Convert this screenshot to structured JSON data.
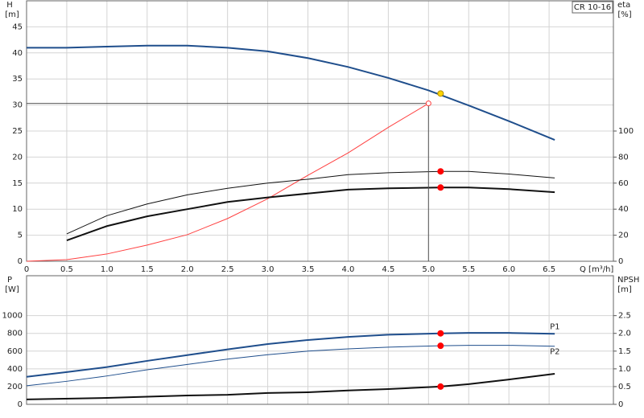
{
  "chart_data": [
    {
      "type": "line",
      "model": "CR 10-16",
      "y_label": "H",
      "y_unit": "[m]",
      "y2_label": "eta",
      "y2_unit": "[%]",
      "x_label": "Q [m³/h]",
      "xlim": [
        0,
        7.3
      ],
      "xticks": [
        0,
        0.5,
        {
          "value": 1,
          "label": "1.0"
        },
        1.5,
        {
          "value": 2,
          "label": "2.0"
        },
        2.5,
        {
          "value": 3,
          "label": "3.0"
        },
        3.5,
        {
          "value": 4,
          "label": "4.0"
        },
        4.5,
        {
          "value": 5,
          "label": "5.0"
        },
        5.5,
        {
          "value": 6,
          "label": "6.0"
        },
        6.5
      ],
      "ylim": [
        0,
        50
      ],
      "yticks": [
        0,
        5,
        10,
        15,
        20,
        25,
        30,
        35,
        40,
        45
      ],
      "y2lim": [
        0,
        200
      ],
      "y2ticks": [
        0,
        20,
        40,
        60,
        80,
        100
      ],
      "grid": true,
      "series": [
        {
          "color": "#1f4e8c",
          "width": 2,
          "x": [
            0,
            0.5,
            1,
            1.5,
            2,
            2.5,
            3,
            3.5,
            4,
            4.5,
            5,
            5.5,
            6,
            6.57
          ],
          "values": [
            41,
            41,
            41.2,
            41.4,
            41.4,
            41,
            40.3,
            39,
            37.3,
            35.2,
            32.8,
            29.9,
            26.9,
            23.3
          ]
        },
        {
          "color": "#ff4040",
          "width": 1,
          "x": [
            0,
            0.5,
            1,
            1.5,
            2,
            2.5,
            3,
            3.5,
            4,
            4.5,
            5
          ],
          "values": [
            0,
            0.3,
            1.4,
            3.1,
            5.1,
            8.2,
            12,
            16.5,
            20.8,
            25.7,
            30.3
          ]
        },
        {
          "color": "#111111",
          "width": 1,
          "axis": "y2",
          "x": [
            0.5,
            1,
            1.5,
            2,
            2.5,
            3,
            3.5,
            4,
            4.5,
            5.15,
            5.5,
            6,
            6.57
          ],
          "values": [
            21,
            35,
            44,
            51,
            56,
            60,
            63,
            66.5,
            68,
            69,
            69,
            67,
            64
          ]
        },
        {
          "color": "#111111",
          "width": 2,
          "axis": "y2",
          "x": [
            0.5,
            1,
            1.5,
            2,
            2.5,
            3,
            3.5,
            4,
            4.5,
            5.15,
            5.5,
            6,
            6.57
          ],
          "values": [
            16,
            27,
            34.5,
            40,
            45.5,
            49,
            52,
            55,
            56,
            56.6,
            56.6,
            55.4,
            53
          ]
        }
      ],
      "markers": [
        {
          "x": 5,
          "y": 30.3,
          "color": "#ff4040",
          "hollow": true,
          "guides": true
        },
        {
          "x": 5.15,
          "y": 32.2,
          "color": "#ffd400"
        },
        {
          "x": 5.15,
          "y": 69,
          "axis": "y2",
          "color": "#ff0000"
        },
        {
          "x": 5.15,
          "y": 56.6,
          "axis": "y2",
          "color": "#ff0000"
        }
      ]
    },
    {
      "type": "line",
      "y_label": "P",
      "y_unit": "[W]",
      "y2_label": "NPSH",
      "y2_unit": "[m]",
      "xlim": [
        0,
        7.3
      ],
      "xticks": [
        0,
        0.5,
        1,
        1.5,
        2,
        2.5,
        3,
        3.5,
        4,
        4.5,
        5,
        5.5,
        6,
        6.5
      ],
      "ylim": [
        0,
        1450
      ],
      "yticks": [
        0,
        200,
        400,
        600,
        800,
        1000
      ],
      "y2lim": [
        0,
        3.625
      ],
      "y2ticks": [
        0,
        0.5,
        {
          "value": 1,
          "label": "1.0"
        },
        1.5,
        {
          "value": 2,
          "label": "2.0"
        },
        2.5
      ],
      "grid": true,
      "series": [
        {
          "name": "P1",
          "color": "#1f4e8c",
          "width": 2,
          "x": [
            0,
            0.5,
            1,
            1.5,
            2,
            2.5,
            3,
            3.5,
            4,
            4.5,
            5.15,
            5.5,
            6,
            6.57
          ],
          "values": [
            310,
            364,
            420,
            490,
            555,
            620,
            680,
            725,
            760,
            785,
            800,
            805,
            805,
            795
          ]
        },
        {
          "name": "P2",
          "color": "#1f4e8c",
          "width": 1,
          "x": [
            0,
            0.5,
            1,
            1.5,
            2,
            2.5,
            3,
            3.5,
            4,
            4.5,
            5.15,
            5.5,
            6,
            6.57
          ],
          "values": [
            210,
            260,
            320,
            390,
            450,
            510,
            560,
            600,
            625,
            645,
            660,
            665,
            665,
            655
          ]
        },
        {
          "color": "#111111",
          "width": 2,
          "axis": "y2",
          "x": [
            0,
            1,
            2,
            2.5,
            3,
            3.5,
            4,
            4.5,
            5.15,
            5.5,
            6,
            6.57
          ],
          "values": [
            0.14,
            0.18,
            0.25,
            0.27,
            0.32,
            0.34,
            0.39,
            0.43,
            0.5,
            0.57,
            0.7,
            0.86
          ]
        }
      ],
      "markers": [
        {
          "x": 5.15,
          "y": 800,
          "color": "#ff0000"
        },
        {
          "x": 5.15,
          "y": 660,
          "color": "#ff0000"
        },
        {
          "x": 5.15,
          "y": 0.5,
          "axis": "y2",
          "color": "#ff0000"
        }
      ]
    }
  ]
}
